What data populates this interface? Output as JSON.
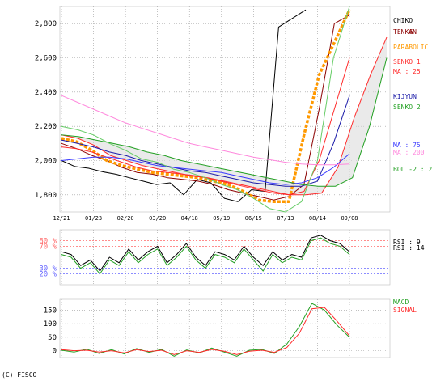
{
  "copyright": "(C) FISCO",
  "colors": {
    "price": "#000000",
    "tenkan": "#8b0000",
    "parabolic": "#ff9900",
    "senko1": "#ff2a2a",
    "kijyun": "#1a1aa8",
    "senko2": "#22a022",
    "ma75": "#3a3aff",
    "ma200": "#ff88dd",
    "bollinger": "#66cc66",
    "rsi9": "#000000",
    "rsi14": "#22a022",
    "macd": "#22a022",
    "signal": "#ff2a2a",
    "ref_high": "#ff6666",
    "ref_low": "#6666ff"
  },
  "legend": {
    "chiko": "CHIKO",
    "tenkan_prefix": "TENKAN",
    "tenkan_value": "-6",
    "parabolic": "PARABOLIC",
    "senko1": "SENKO 1",
    "ma25": "MA : 25",
    "kijyun": "KIJYUN",
    "senko2": "SENKO 2",
    "ma75": "MA : 75",
    "ma200": "MA : 200",
    "bol": "BOL -2 : 2",
    "rsi9": "RSI : 9",
    "rsi14": "RSI : 14",
    "macd": "MACD",
    "signal": "SIGNAL"
  },
  "chart_data": [
    {
      "type": "line",
      "panel": "price",
      "x_tick_labels": [
        "12/21",
        "01/23",
        "02/20",
        "03/20",
        "04/18",
        "05/19",
        "06/15",
        "07/13",
        "08/14",
        "09/08"
      ],
      "y_tick_labels": [
        "1,800",
        "2,000",
        "2,200",
        "2,400",
        "2,600",
        "2,800"
      ],
      "ylim": [
        1700,
        2900
      ],
      "grid": true,
      "series": [
        {
          "name": "CHIKO",
          "values": [
            2000,
            1965,
            1955,
            1935,
            1920,
            1900,
            1880,
            1860,
            1870,
            1800,
            1890,
            1870,
            1780,
            1760,
            1830,
            1820,
            2780,
            2830,
            2880
          ]
        },
        {
          "name": "TENKAN",
          "values": [
            2100,
            2070,
            2030,
            2000,
            1960,
            1930,
            1920,
            1900,
            1890,
            1880,
            1860,
            1830,
            1810,
            1790,
            1770,
            1790,
            1860,
            2300,
            2800,
            2850
          ]
        },
        {
          "name": "PARABOLIC",
          "values": [
            2130,
            2110,
            2060,
            2000,
            1970,
            1950,
            1930,
            1920,
            1910,
            1900,
            1880,
            1860,
            1820,
            1770,
            1760,
            1760,
            2150,
            2500,
            2690,
            2880
          ]
        },
        {
          "name": "SENKO 1",
          "values": [
            2150,
            2130,
            2090,
            2030,
            2000,
            1970,
            1950,
            1930,
            1910,
            1900,
            1880,
            1860,
            1840,
            1820,
            1800,
            1800,
            1810,
            1960,
            2250,
            2500,
            2720
          ]
        },
        {
          "name": "MA : 25",
          "values": [
            2080,
            2070,
            2050,
            2020,
            1990,
            1960,
            1940,
            1930,
            1920,
            1910,
            1890,
            1870,
            1850,
            1830,
            1810,
            1800,
            1820,
            2000,
            2300,
            2600
          ]
        },
        {
          "name": "KIJYUN",
          "values": [
            2120,
            2100,
            2080,
            2050,
            2030,
            2000,
            1980,
            1960,
            1940,
            1930,
            1910,
            1890,
            1870,
            1860,
            1850,
            1850,
            1880,
            2100,
            2380
          ]
        },
        {
          "name": "SENKO 2",
          "values": [
            2150,
            2140,
            2120,
            2100,
            2080,
            2050,
            2030,
            2000,
            1980,
            1960,
            1940,
            1920,
            1900,
            1880,
            1860,
            1850,
            1850,
            1900,
            2200,
            2600
          ]
        },
        {
          "name": "MA : 75",
          "values": [
            2000,
            2010,
            2020,
            2020,
            2010,
            1990,
            1970,
            1960,
            1950,
            1940,
            1930,
            1910,
            1890,
            1870,
            1860,
            1870,
            1900,
            1960,
            2040
          ]
        },
        {
          "name": "MA : 200",
          "values": [
            2380,
            2340,
            2300,
            2260,
            2220,
            2190,
            2160,
            2130,
            2100,
            2080,
            2060,
            2040,
            2020,
            2005,
            1990,
            1980,
            1975,
            1975,
            1980
          ]
        },
        {
          "name": "BOL -2 : 2",
          "values": [
            2200,
            2180,
            2150,
            2100,
            2060,
            2010,
            1990,
            1950,
            1930,
            1900,
            1860,
            1830,
            1780,
            1720,
            1700,
            1760,
            2000,
            2600,
            2900
          ]
        }
      ]
    },
    {
      "type": "line",
      "panel": "rsi",
      "y_tick_labels": [
        "20 %",
        "30 %",
        "70 %",
        "80 %"
      ],
      "ylim": [
        0,
        100
      ],
      "reference_lines": [
        20,
        30,
        70,
        80
      ],
      "series": [
        {
          "name": "RSI : 9",
          "values": [
            60,
            55,
            35,
            45,
            25,
            50,
            40,
            65,
            45,
            60,
            70,
            40,
            55,
            75,
            50,
            35,
            60,
            55,
            45,
            70,
            50,
            35,
            60,
            45,
            55,
            50,
            85,
            90,
            80,
            75,
            60
          ]
        },
        {
          "name": "RSI : 14",
          "values": [
            55,
            50,
            30,
            40,
            20,
            45,
            35,
            60,
            40,
            55,
            65,
            35,
            50,
            70,
            45,
            30,
            55,
            50,
            40,
            65,
            45,
            25,
            55,
            40,
            50,
            45,
            80,
            85,
            75,
            70,
            55
          ]
        }
      ]
    },
    {
      "type": "line",
      "panel": "macd",
      "y_tick_labels": [
        "0",
        "50",
        "100",
        "150"
      ],
      "ylim": [
        -25,
        190
      ],
      "series": [
        {
          "name": "MACD",
          "values": [
            2,
            -5,
            6,
            -10,
            4,
            -12,
            8,
            -6,
            5,
            -20,
            3,
            -8,
            10,
            -5,
            -20,
            2,
            5,
            -10,
            25,
            90,
            175,
            150,
            95,
            50
          ]
        },
        {
          "name": "SIGNAL",
          "values": [
            4,
            0,
            2,
            -5,
            0,
            -8,
            4,
            -3,
            2,
            -14,
            0,
            -6,
            5,
            -2,
            -14,
            -2,
            2,
            -6,
            12,
            65,
            155,
            160,
            110,
            55
          ]
        }
      ]
    }
  ]
}
